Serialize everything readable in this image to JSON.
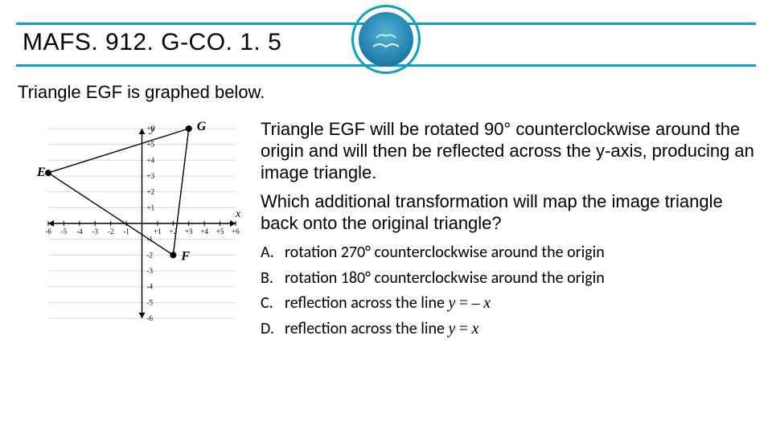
{
  "colors": {
    "accent": "#0d9fc7",
    "grid": "#d9d9d9",
    "axis": "#000000",
    "point": "#000000",
    "text": "#000000"
  },
  "title": "MAFS. 912. G-CO. 1. 5",
  "intro": "Triangle EGF is graphed below.",
  "paragraph1": "Triangle EGF will be rotated 90° counterclockwise around the origin and will then be reflected across the y-axis, producing an image triangle.",
  "paragraph2": "Which additional transformation will map the image triangle back onto the original triangle?",
  "choices": [
    {
      "label": "A.",
      "text_html": "rotation 270° counterclockwise around the origin"
    },
    {
      "label": "B.",
      "text_html": "rotation 180° counterclockwise around the origin"
    },
    {
      "label": "C.",
      "text_html": "reflection across the line <span class='mi'>y</span> <span class='mo'>=</span> <span class='mo'>–</span> <span class='mi'>x</span>"
    },
    {
      "label": "D.",
      "text_html": "reflection across the line <span class='mi'>y</span> <span class='mo'>=</span> <span class='mi'>x</span>"
    }
  ],
  "graph": {
    "xlim": [
      -6,
      6
    ],
    "ylim": [
      -6,
      6
    ],
    "xticks": [
      -6,
      -5,
      -4,
      -3,
      -2,
      -1,
      1,
      2,
      3,
      4,
      5,
      6
    ],
    "yticks": [
      1,
      2,
      3,
      4,
      5,
      6,
      -1,
      -2,
      -3,
      -4,
      -5,
      -6
    ],
    "grid_color": "#d9d9d9",
    "axis_color": "#000000",
    "tick_fontsize": 9,
    "axis_label_fontsize": 14,
    "point_radius": 4,
    "line_width": 1.4,
    "points": {
      "E": {
        "x": -6,
        "y": 3.2,
        "label_dx": -14,
        "label_dy": 4
      },
      "G": {
        "x": 3,
        "y": 6,
        "label_dx": 10,
        "label_dy": 2
      },
      "F": {
        "x": 2,
        "y": -2,
        "label_dx": 10,
        "label_dy": 6
      }
    },
    "edges": [
      [
        "E",
        "G"
      ],
      [
        "G",
        "F"
      ],
      [
        "F",
        "E"
      ]
    ],
    "x_axis_label": "x",
    "y_axis_label": "y"
  }
}
